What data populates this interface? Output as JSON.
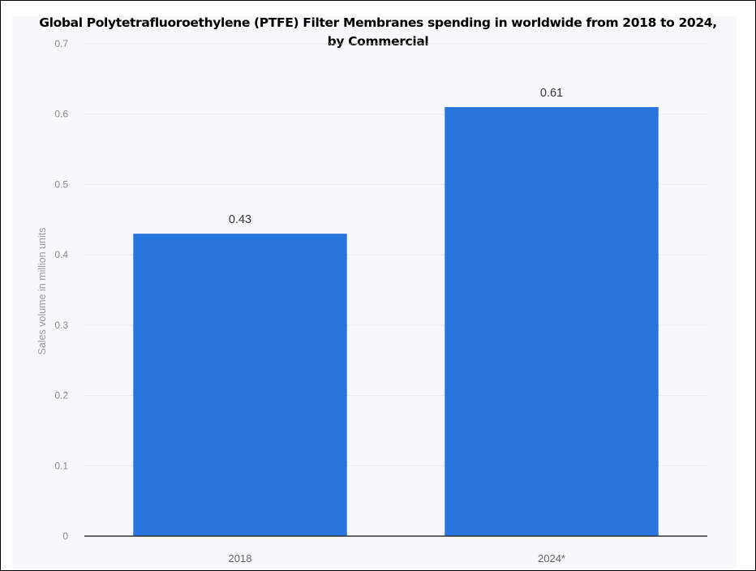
{
  "chart_data": {
    "type": "bar",
    "title": "Global Polytetrafluoroethylene (PTFE) Filter Membranes spending in worldwide from 2018 to 2024,",
    "subtitle": "by Commercial",
    "xlabel": "",
    "ylabel": "Sales volume in million units",
    "categories": [
      "2018",
      "2024*"
    ],
    "values": [
      0.43,
      0.61
    ],
    "data_labels": [
      "0.43",
      "0.61"
    ],
    "ylim": [
      0,
      0.7
    ],
    "yticks": [
      "0",
      "0.1",
      "0.2",
      "0.3",
      "0.4",
      "0.5",
      "0.6",
      "0.7"
    ],
    "grid": true,
    "legend": "none",
    "colors": {
      "bar": "#2774dc",
      "grid": "#dddddd",
      "axis": "#333333",
      "plot_background": "#f7f8fa"
    }
  }
}
